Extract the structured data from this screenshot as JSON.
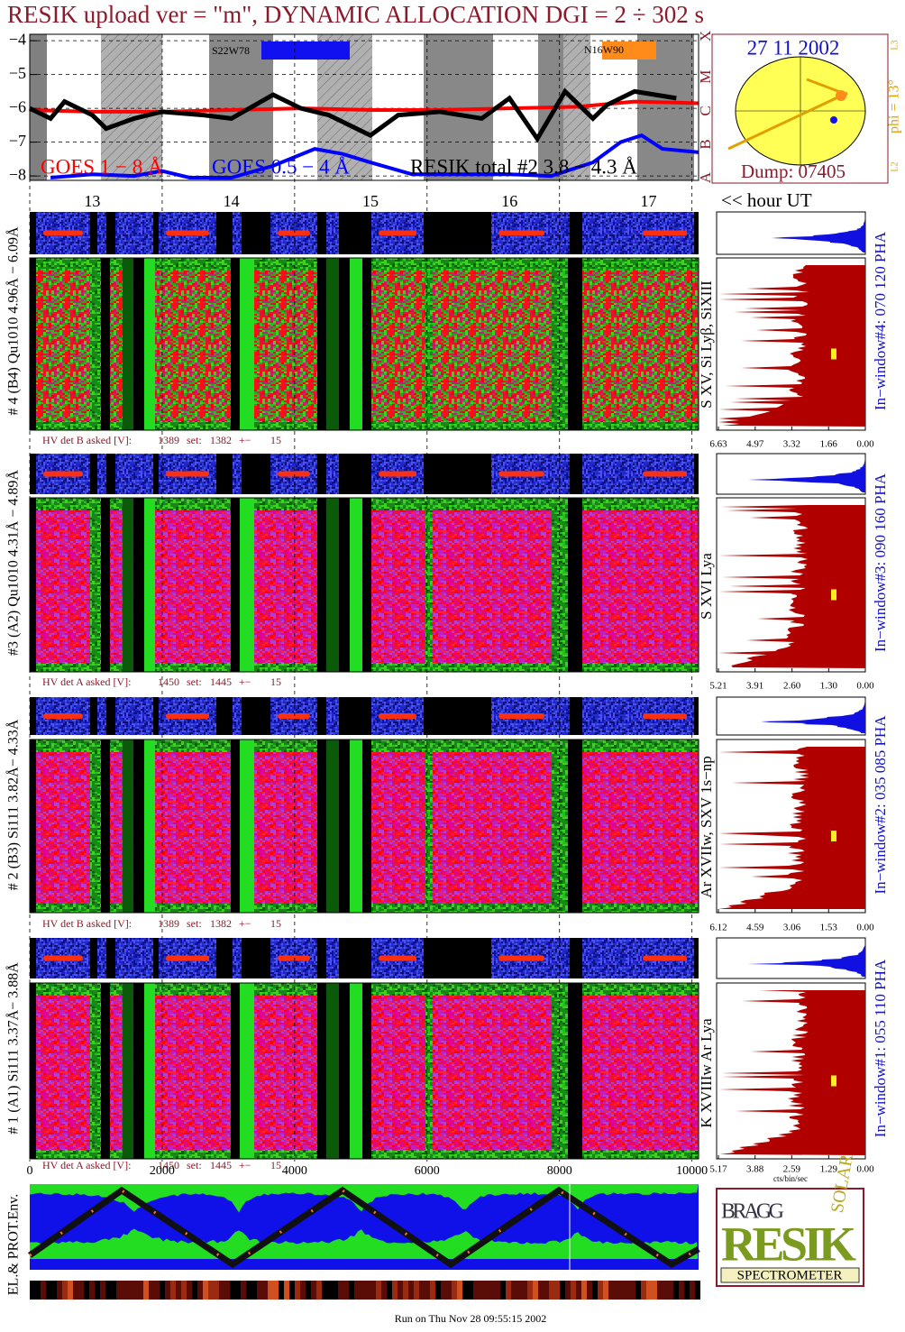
{
  "header": {
    "title": "RESIK upload ver = \"m\", DYNAMIC ALLOCATION  DGI =   2 ÷ 302 s"
  },
  "goes": {
    "xlim": [
      12.55,
      17.36
    ],
    "ylim": [
      -8.13,
      -3.81
    ],
    "yticks": [
      {
        "value": -4,
        "label": "−4"
      },
      {
        "value": -5,
        "label": "−5"
      },
      {
        "value": -6,
        "label": "−6"
      },
      {
        "value": -7,
        "label": "−7"
      },
      {
        "value": -8,
        "label": "−8"
      }
    ],
    "xticks": [
      13,
      14,
      15,
      16,
      17
    ],
    "x_axis_label": "<< hour UT",
    "classes": [
      "X",
      "M",
      "C",
      "B",
      "A"
    ],
    "annotations": [
      "S22W78",
      "N16W90"
    ],
    "series": [
      {
        "name": "GOES 1 − 8 Å",
        "color": "#ff0000",
        "x": [
          12.55,
          13.0,
          13.5,
          14.0,
          14.5,
          15.0,
          15.5,
          16.0,
          16.5,
          16.9,
          17.36
        ],
        "values": [
          -6.05,
          -6.1,
          -6.1,
          -6.05,
          -6.0,
          -6.05,
          -6.05,
          -6.0,
          -5.95,
          -5.8,
          -5.85
        ]
      },
      {
        "name": "GOES 0.5 − 4 Å",
        "color": "#0000ff",
        "x": [
          12.7,
          13.0,
          13.3,
          13.5,
          13.7,
          14.0,
          14.3,
          14.6,
          14.8,
          15.0,
          15.3,
          15.6,
          16.0,
          16.3,
          16.6,
          16.8,
          16.95,
          17.1,
          17.36
        ],
        "values": [
          -8.05,
          -7.95,
          -8.0,
          -7.85,
          -8.05,
          -8.05,
          -7.7,
          -7.2,
          -7.35,
          -7.6,
          -7.95,
          -7.95,
          -7.95,
          -8.0,
          -7.6,
          -7.0,
          -6.8,
          -7.2,
          -7.3
        ]
      },
      {
        "name": "RESIK total #2  3.8 − 4.3 Å",
        "color": "#000000",
        "x": [
          12.55,
          12.7,
          12.8,
          13.0,
          13.1,
          13.3,
          13.5,
          13.8,
          14.0,
          14.3,
          14.5,
          14.7,
          15.0,
          15.2,
          15.5,
          15.8,
          16.0,
          16.2,
          16.4,
          16.6,
          16.7,
          16.9,
          17.2
        ],
        "values": [
          -6.0,
          -6.3,
          -5.8,
          -6.2,
          -6.6,
          -6.3,
          -6.1,
          -6.2,
          -6.3,
          -5.6,
          -6.0,
          -6.2,
          -6.8,
          -6.2,
          -6.1,
          -6.3,
          -5.7,
          -6.9,
          -5.5,
          -6.3,
          -5.9,
          -5.5,
          -5.7
        ]
      }
    ]
  },
  "sun": {
    "date": "27 11 2002",
    "phi": "phi = 13°",
    "dump": "Dump: 07405",
    "l3": "L3",
    "l2": "L2"
  },
  "bins": {
    "xlim": [
      0,
      10100
    ],
    "xticks": [
      0,
      2000,
      4000,
      6000,
      8000,
      10000
    ]
  },
  "panels": [
    {
      "label": "# 4 (B4) Qu1010 4.96Å − 6.09Å",
      "lines": "S XV, Si Lyβ, SiXIII",
      "window": "In−window#4:  070 120 PHA",
      "hv": {
        "label": "HV det B asked [V]:",
        "asked": 1389,
        "set_label": "set:",
        "set": 1382,
        "pm": "+−",
        "tol": 15
      },
      "hist_ticks": [
        6.63,
        4.97,
        3.32,
        1.66,
        {
          "value": 0,
          "label": "0.00"
        }
      ]
    },
    {
      "label": "#3 (A2) Qu1010  4.31Å − 4.89Å",
      "lines": "S XVI Lya",
      "window": "In−window#3:  090 160 PHA",
      "hv": {
        "label": "HV det A asked [V]:",
        "asked": 1450,
        "set_label": "set:",
        "set": 1445,
        "pm": "+−",
        "tol": 15
      },
      "hist_ticks": [
        5.21,
        3.91,
        {
          "value": 2.6,
          "label": "2.60"
        },
        {
          "value": 1.3,
          "label": "1.30"
        },
        {
          "value": 0,
          "label": "0.00"
        }
      ]
    },
    {
      "label": "# 2 (B3) Si111  3.82Å− 4.33Å",
      "lines": "Ar XVIIw,  SXV 1s−np",
      "window": "In−window#2:  035 085 PHA",
      "hv": {
        "label": "HV det B asked [V]:",
        "asked": 1389,
        "set_label": "set:",
        "set": 1382,
        "pm": "+−",
        "tol": 15
      },
      "hist_ticks": [
        6.12,
        4.59,
        3.06,
        1.53,
        {
          "value": 0,
          "label": "0.00"
        }
      ]
    },
    {
      "label": "# 1 (A1) Si111  3.37Å− 3.88Å",
      "lines": "K XVIIIw  Ar Lya",
      "window": "In−window#1:  055 110 PHA",
      "hv": {
        "label": "HV det A asked [V]:",
        "asked": 1450,
        "set_label": "set:",
        "set": 1445,
        "pm": "+−",
        "tol": 15
      },
      "hist_ticks": [
        5.17,
        3.88,
        2.59,
        1.29,
        {
          "value": 0,
          "label": "0.00"
        }
      ]
    }
  ],
  "hist_axis_label": "cts/bin/sec",
  "particles": {
    "label": "EL.& PROT.Env."
  },
  "logo": {
    "bragg": "BRAGG",
    "resik": "RESIK",
    "solar": "SOLAR",
    "spectrometer": "SPECTROMETER"
  },
  "footer": "Run on Thu Nov 28 09:55:15 2002"
}
